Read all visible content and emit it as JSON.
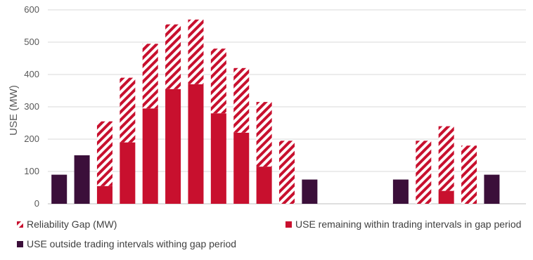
{
  "chart_data": {
    "type": "bar",
    "stacked": true,
    "ylabel": "USE (MW)",
    "xlabel": "",
    "title": "",
    "ylim": [
      0,
      600
    ],
    "yticks": [
      0,
      100,
      200,
      300,
      400,
      500,
      600
    ],
    "grid": true,
    "legend_position": "bottom",
    "n_categories": 21,
    "series": [
      {
        "name": "USE outside trading intervals withing gap period",
        "color": "#3b0f3a",
        "pattern": "solid",
        "values": [
          90,
          150,
          0,
          0,
          0,
          0,
          0,
          0,
          0,
          0,
          0,
          75,
          0,
          0,
          0,
          75,
          0,
          0,
          0,
          90,
          0
        ]
      },
      {
        "name": "USE remaining within trading intervals in gap period",
        "color": "#c8102e",
        "pattern": "solid",
        "values": [
          0,
          0,
          55,
          190,
          295,
          355,
          370,
          280,
          220,
          115,
          0,
          0,
          0,
          0,
          0,
          0,
          0,
          40,
          0,
          0,
          0
        ]
      },
      {
        "name": "Reliability Gap (MW)",
        "color": "#c8102e",
        "pattern": "hatch",
        "values": [
          0,
          0,
          200,
          200,
          200,
          200,
          200,
          200,
          200,
          200,
          195,
          0,
          0,
          0,
          0,
          0,
          195,
          200,
          180,
          0,
          0
        ]
      }
    ],
    "legend": [
      {
        "label": "Reliability Gap (MW)",
        "series": 2
      },
      {
        "label": "USE remaining within trading intervals in gap period",
        "series": 1
      },
      {
        "label": "USE outside trading intervals withing gap period",
        "series": 0
      }
    ]
  }
}
